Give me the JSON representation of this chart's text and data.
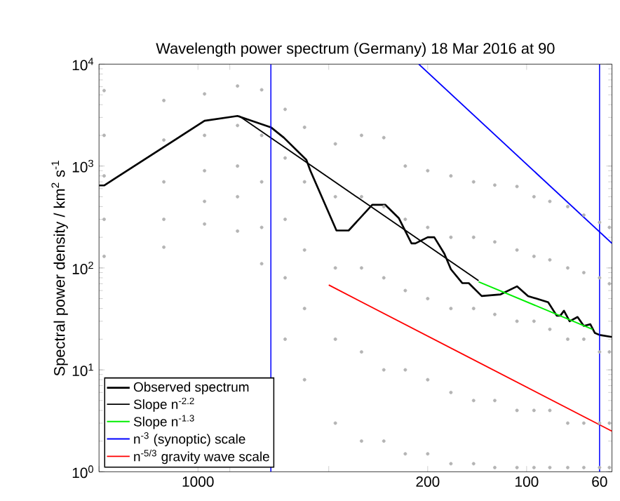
{
  "chart_data": {
    "type": "line",
    "title": "Wavelength power spectrum (Germany) 18 Mar 2016 at 90",
    "ylabel": "Spectral power density / km$^{2}$ s$^{-1}$",
    "log": "xy",
    "grid": false,
    "legend": "bottom left",
    "marker": "none",
    "xlim": [
      2000,
      55
    ],
    "ylim": [
      1,
      10000
    ],
    "xticks": [
      {
        "value": 2000,
        "label": null
      },
      1000,
      {
        "value": 800,
        "label": null
      },
      {
        "value": 400,
        "label": null
      },
      200,
      100,
      60
    ],
    "yticks": [
      {
        "value": 1,
        "label": "10$^{0}$"
      },
      {
        "value": 10,
        "label": "10$^{1}$"
      },
      {
        "value": 100,
        "label": "10$^{2}$"
      },
      {
        "value": 1000,
        "label": "10$^{3}$"
      },
      {
        "value": 10000,
        "label": "10$^{4}$"
      }
    ],
    "ref_lines": [
      {
        "axis": "x",
        "value": 600,
        "color": "#0000ff"
      },
      {
        "axis": "x",
        "value": 60,
        "color": "#0000ff"
      }
    ],
    "series": [
      {
        "type": "scatter",
        "marker": "circle",
        "color": "#b4b4b4",
        "x": [
          1930,
          1930,
          1930,
          1930,
          1930,
          1270,
          1270,
          1270,
          1270,
          1270,
          955,
          955,
          955,
          955,
          955,
          758,
          758,
          758,
          758,
          758,
          640,
          640,
          640,
          640,
          640,
          543,
          543,
          543,
          543,
          543,
          474,
          474,
          474,
          474,
          474,
          382,
          382,
          382,
          382,
          382,
          318,
          318,
          318,
          318,
          318,
          272,
          272,
          272,
          272,
          272,
          234,
          234,
          234,
          234,
          234,
          200,
          200,
          200,
          200,
          200,
          170,
          170,
          170,
          170,
          170,
          145,
          145,
          145,
          145,
          145,
          125,
          125,
          125,
          125,
          125,
          107,
          107,
          107,
          107,
          107,
          95,
          95,
          95,
          95,
          95,
          85,
          85,
          85,
          85,
          85,
          75,
          75,
          75,
          75,
          75,
          67,
          67,
          67,
          67,
          67,
          60,
          60,
          60,
          60,
          60,
          56,
          56,
          56,
          56,
          56
        ],
        "values": [
          5500,
          2000,
          800,
          300,
          130,
          4400,
          1800,
          700,
          300,
          160,
          5100,
          2000,
          900,
          450,
          270,
          6100,
          2500,
          1000,
          500,
          230,
          5600,
          2000,
          700,
          250,
          110,
          3600,
          1200,
          300,
          80,
          20,
          2400,
          700,
          150,
          40,
          8,
          1650,
          500,
          100,
          20,
          3,
          2000,
          500,
          100,
          15,
          2,
          1900,
          400,
          80,
          10,
          2,
          1000,
          300,
          60,
          10,
          1.5,
          900,
          250,
          50,
          8,
          1.5,
          800,
          200,
          40,
          6,
          1.2,
          700,
          200,
          40,
          5,
          1.2,
          650,
          180,
          35,
          5,
          1.1,
          630,
          150,
          30,
          4,
          1.1,
          500,
          130,
          30,
          4,
          1.1,
          450,
          120,
          25,
          4,
          1.1,
          400,
          100,
          20,
          3,
          1.1,
          330,
          90,
          20,
          3,
          1.1,
          280,
          80,
          15,
          3,
          1.1,
          250,
          70,
          15,
          3,
          1.1
        ]
      },
      {
        "name": "Observed spectrum",
        "color": "#000000",
        "x": [
          2000,
          1930,
          955,
          758,
          600,
          548,
          468,
          455,
          379,
          348,
          295,
          269,
          245,
          224,
          218,
          200,
          191,
          178,
          170,
          157,
          150,
          137,
          120,
          107,
          99,
          86,
          81,
          79,
          77,
          74,
          70,
          67,
          64,
          62,
          60,
          55
        ],
        "values": [
          645,
          645,
          2780,
          3100,
          2400,
          1900,
          1150,
          900,
          233,
          233,
          416,
          416,
          309,
          174,
          174,
          200,
          200,
          138,
          97,
          71,
          71,
          53,
          55,
          66,
          53,
          46,
          34,
          34,
          38,
          30,
          33,
          27,
          28,
          23,
          22,
          21
        ]
      },
      {
        "name": "Slope n$^{-2.2}$",
        "color": "#000000",
        "x": [
          750,
          140
        ],
        "values": [
          3100,
          75
        ]
      },
      {
        "name": "Slope n$^{-1.3}$",
        "color": "#00ee00",
        "x": [
          140,
          63
        ],
        "values": [
          73,
          25
        ]
      },
      {
        "name": "n$^{-3}$ (synoptic) scale",
        "color": "#0000ff",
        "x": [
          213,
          55
        ],
        "values": [
          10000,
          174
        ]
      },
      {
        "name": "n$^{-5/3}$ gravity wave scale",
        "color": "#ff0000",
        "x": [
          400,
          55
        ],
        "values": [
          68,
          2.5
        ]
      }
    ]
  }
}
